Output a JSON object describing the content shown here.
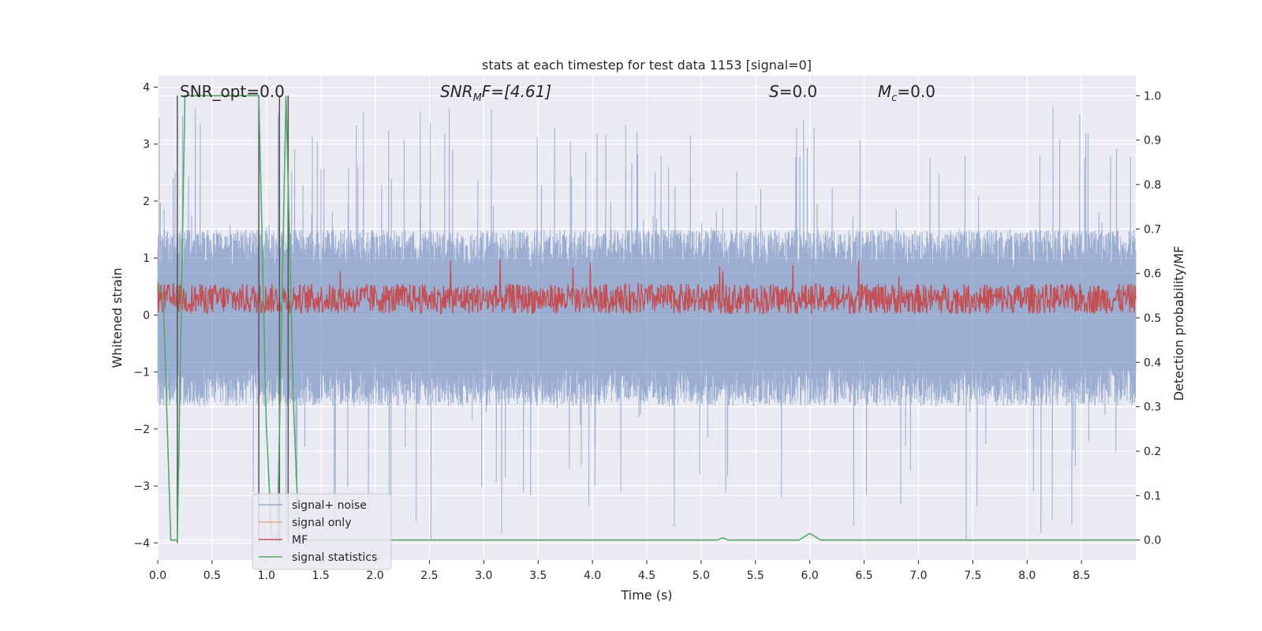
{
  "chart_data": {
    "type": "line",
    "title": "stats at each timestep for test data 1153 [signal=0]",
    "xlabel": "Time (s)",
    "ylabel": "Whitened strain",
    "y2label": "Detection probability/MF",
    "xlim": [
      0.0,
      9.0
    ],
    "ylim": [
      -4.3,
      4.2
    ],
    "y2lim": [
      -0.045,
      1.045
    ],
    "xticks": [
      "0.0",
      "0.5",
      "1.0",
      "1.5",
      "2.0",
      "2.5",
      "3.0",
      "3.5",
      "4.0",
      "4.5",
      "5.0",
      "5.5",
      "6.0",
      "6.5",
      "7.0",
      "7.5",
      "8.0",
      "8.5"
    ],
    "yticks": [
      "4",
      "3",
      "2",
      "1",
      "0",
      "−1",
      "−2",
      "−3",
      "−4"
    ],
    "y2ticks": [
      "1.0",
      "0.9",
      "0.8",
      "0.7",
      "0.6",
      "0.5",
      "0.4",
      "0.3",
      "0.2",
      "0.1",
      "0.0"
    ],
    "grid": true,
    "legend_position": "lower-left",
    "annotations": {
      "snr_opt": "SNR_opt=0.0",
      "snr_mf_base": "SNR",
      "snr_mf_sub": "M",
      "snr_mf_rest": "F=[4.61]",
      "s_var": "S",
      "s_rest": "=0.0",
      "mc_var": "M",
      "mc_sub": "c",
      "mc_rest": "=0.0"
    },
    "series": [
      {
        "name": "signal+ noise",
        "color": "#4c72b0",
        "envelope": {
          "upper": 1.5,
          "lower": -1.6,
          "peak_max": 3.7,
          "peak_min": -4.0
        }
      },
      {
        "name": "signal only",
        "color": "#dd8452",
        "values": []
      },
      {
        "name": "MF",
        "color": "#c44e52",
        "envelope": {
          "upper": 0.55,
          "lower": 0.02,
          "peak_max": 1.0
        }
      },
      {
        "name": "signal statistics",
        "color": "#55a868",
        "x": [
          0.0,
          0.05,
          0.12,
          0.18,
          0.25,
          0.5,
          0.75,
          0.93,
          1.0,
          1.05,
          1.1,
          1.18,
          1.25,
          1.3,
          2.0,
          3.0,
          4.0,
          5.0,
          5.15,
          5.2,
          5.25,
          5.5,
          5.9,
          6.0,
          6.1,
          7.0,
          8.0,
          9.0
        ],
        "y": [
          0.58,
          0.55,
          0.0,
          0.0,
          1.0,
          1.0,
          1.0,
          1.0,
          0.25,
          0.0,
          0.0,
          1.0,
          0.3,
          0.0,
          0.0,
          0.0,
          0.0,
          0.0,
          0.0,
          0.005,
          0.0,
          0.0,
          0.0,
          0.015,
          0.0,
          0.0,
          0.0,
          0.0
        ]
      }
    ],
    "vertical_markers": [
      {
        "x": 0.18,
        "y": [
          -4.0,
          3.85
        ]
      },
      {
        "x": 0.93,
        "y": [
          -4.0,
          3.85
        ]
      },
      {
        "x": 1.12,
        "y": [
          -4.0,
          3.85
        ]
      },
      {
        "x": 1.2,
        "y": [
          -4.0,
          3.85
        ]
      }
    ],
    "theme": {
      "axes_bg": "#eaeaf2",
      "grid_color": "#ffffff",
      "text_color": "#262626"
    }
  }
}
